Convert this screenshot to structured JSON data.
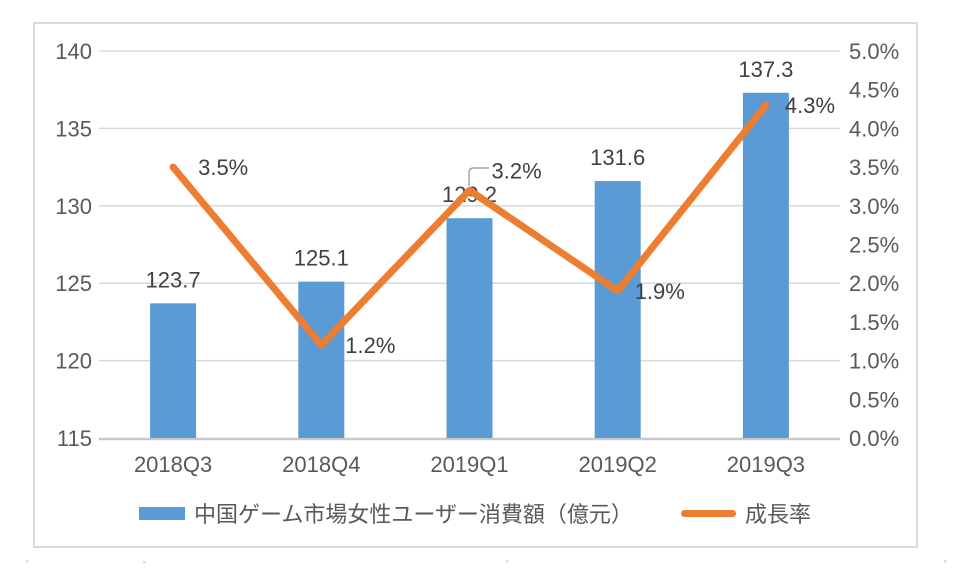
{
  "chart_data": {
    "type": "bar+line combo",
    "title": "",
    "categories": [
      "2018Q3",
      "2018Q4",
      "2019Q1",
      "2019Q2",
      "2019Q3"
    ],
    "series": [
      {
        "name": "中国ゲーム市場女性ユーザー消費額（億元）",
        "type": "bar",
        "axis": "left",
        "values": [
          123.7,
          125.1,
          129.2,
          131.6,
          137.3
        ],
        "data_labels": [
          "123.7",
          "125.1",
          "129.2",
          "131.6",
          "137.3"
        ],
        "color": "#5B9BD5"
      },
      {
        "name": "成長率",
        "type": "line",
        "axis": "right",
        "values": [
          3.5,
          1.2,
          3.2,
          1.9,
          4.3
        ],
        "data_labels": [
          "3.5%",
          "1.2%",
          "3.2%",
          "1.9%",
          "4.3%"
        ],
        "color": "#ED7D31",
        "callout_index": 2
      }
    ],
    "left_axis": {
      "min": 115,
      "max": 140,
      "step": 5,
      "tick_labels": [
        "140",
        "135",
        "130",
        "125",
        "120",
        "115"
      ]
    },
    "right_axis": {
      "min": 0.0,
      "max": 5.0,
      "step": 0.5,
      "tick_labels": [
        "5.0%",
        "4.5%",
        "4.0%",
        "3.5%",
        "3.0%",
        "2.5%",
        "2.0%",
        "1.5%",
        "1.0%",
        "0.5%",
        "0.0%"
      ]
    },
    "gridlines": "horizontal",
    "legend_position": "bottom",
    "colors": {
      "bar": "#5B9BD5",
      "line": "#ED7D31",
      "gridline": "#D9D9D9",
      "axis_line": "#C9C9C9",
      "axis_text": "#595959",
      "data_label_text": "#404040",
      "frame_border": "#D9D9D9",
      "background": "#FFFFFF",
      "leader_line": "#A6A6A6"
    }
  }
}
